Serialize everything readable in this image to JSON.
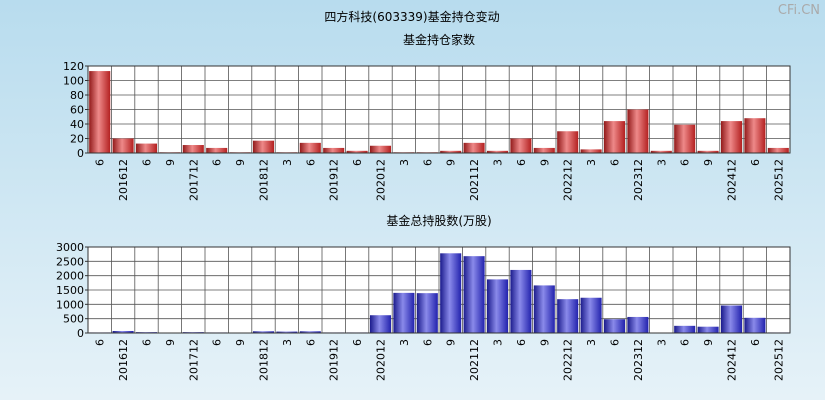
{
  "title": "四方科技(603339)基金持仓变动",
  "watermark": "CFi.CN",
  "chart_data": [
    {
      "type": "bar",
      "title": "基金持仓家数",
      "categories": [
        "6",
        "201612",
        "6",
        "9",
        "201712",
        "6",
        "9",
        "201812",
        "3",
        "6",
        "201912",
        "6",
        "202012",
        "3",
        "6",
        "9",
        "202112",
        "3",
        "6",
        "9",
        "202212",
        "3",
        "6",
        "202312",
        "3",
        "6",
        "9",
        "202412",
        "6",
        "202512"
      ],
      "values": [
        113,
        20,
        13,
        1,
        11,
        7,
        1,
        17,
        1,
        14,
        7,
        3,
        10,
        1,
        1,
        3,
        14,
        3,
        20,
        7,
        30,
        5,
        44,
        60,
        3,
        39,
        3,
        44,
        48,
        7
      ],
      "color": "#e02828",
      "ylim": [
        0,
        120
      ],
      "yticks": [
        0,
        20,
        40,
        60,
        80,
        100,
        120
      ],
      "grid": true
    },
    {
      "type": "bar",
      "title": "基金总持股数(万股)",
      "categories": [
        "6",
        "201612",
        "6",
        "9",
        "201712",
        "6",
        "9",
        "201812",
        "3",
        "6",
        "201912",
        "6",
        "202012",
        "3",
        "6",
        "9",
        "202112",
        "3",
        "6",
        "9",
        "202212",
        "3",
        "6",
        "202312",
        "3",
        "6",
        "9",
        "202412",
        "6",
        "202512"
      ],
      "values": [
        20,
        70,
        30,
        10,
        30,
        20,
        10,
        60,
        50,
        60,
        20,
        20,
        620,
        1400,
        1390,
        2780,
        2680,
        1870,
        2200,
        1660,
        1180,
        1230,
        480,
        560,
        10,
        250,
        220,
        960,
        530,
        20
      ],
      "color": "#2a2ad8",
      "ylim": [
        0,
        3000
      ],
      "yticks": [
        0,
        500,
        1000,
        1500,
        2000,
        2500,
        3000
      ],
      "grid": true
    }
  ]
}
